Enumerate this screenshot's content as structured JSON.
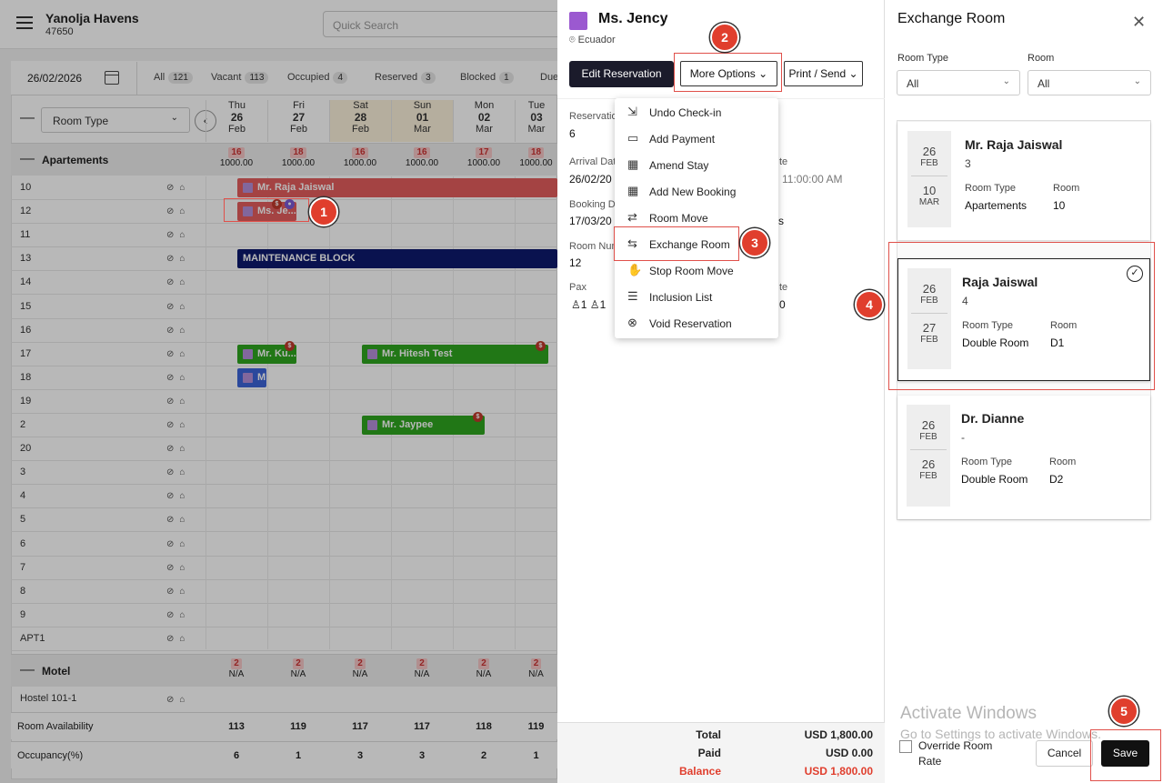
{
  "header": {
    "property_name": "Yanolja Havens",
    "property_id": "47650",
    "search_placeholder": "Quick Search"
  },
  "filters": {
    "date": "26/02/2026",
    "statuses": [
      {
        "label": "All",
        "count": "121"
      },
      {
        "label": "Vacant",
        "count": "113"
      },
      {
        "label": "Occupied",
        "count": "4"
      },
      {
        "label": "Reserved",
        "count": "3"
      },
      {
        "label": "Blocked",
        "count": "1"
      },
      {
        "label": "Due",
        "count": ""
      }
    ],
    "room_type_select": "Room Type"
  },
  "days": [
    {
      "dow": "Thu",
      "day": "26",
      "mon": "Feb",
      "count": "16",
      "rate": "1000.00",
      "avail": "113",
      "occ": "6",
      "motel_count": "2",
      "motel_rate": "N/A"
    },
    {
      "dow": "Fri",
      "day": "27",
      "mon": "Feb",
      "count": "18",
      "rate": "1000.00",
      "avail": "119",
      "occ": "1",
      "motel_count": "2",
      "motel_rate": "N/A"
    },
    {
      "dow": "Sat",
      "day": "28",
      "mon": "Feb",
      "count": "16",
      "rate": "1000.00",
      "avail": "117",
      "occ": "3",
      "motel_count": "2",
      "motel_rate": "N/A"
    },
    {
      "dow": "Sun",
      "day": "01",
      "mon": "Mar",
      "count": "16",
      "rate": "1000.00",
      "avail": "117",
      "occ": "3",
      "motel_count": "2",
      "motel_rate": "N/A"
    },
    {
      "dow": "Mon",
      "day": "02",
      "mon": "Mar",
      "count": "17",
      "rate": "1000.00",
      "avail": "118",
      "occ": "2",
      "motel_count": "2",
      "motel_rate": "N/A"
    },
    {
      "dow": "Tue",
      "day": "03",
      "mon": "Mar",
      "count": "18",
      "rate": "1000.00",
      "avail": "119",
      "occ": "1",
      "motel_count": "2",
      "motel_rate": "N/A"
    }
  ],
  "groups": {
    "apartments": "Apartements",
    "motel": "Motel"
  },
  "rooms": [
    "10",
    "12",
    "11",
    "13",
    "14",
    "15",
    "16",
    "17",
    "18",
    "19",
    "2",
    "20",
    "3",
    "4",
    "5",
    "6",
    "7",
    "8",
    "9",
    "APT1"
  ],
  "motel_rooms": [
    "Hostel 101-1"
  ],
  "bookings": {
    "raja": "Mr. Raja Jaiswal",
    "jency": "Ms. Je...",
    "maintenance": "MAINTENANCE BLOCK",
    "ku": "Mr. Ku...",
    "hitesh": "Mr. Hitesh Test",
    "m18": "M",
    "jaypee": "Mr. Jaypee"
  },
  "footer_rows": {
    "availability": "Room Availability",
    "occupancy": "Occupancy(%)"
  },
  "reservation": {
    "guest": "Ms. Jency",
    "country": "Ecuador",
    "edit_btn": "Edit Reservation",
    "more_btn": "More Options",
    "print_btn": "Print / Send",
    "fields": {
      "res_label": "Reservation",
      "res_val": "6",
      "arrival_label": "Arrival Dat",
      "arrival_val": "26/02/20",
      "depart_label_tail": "te",
      "depart_time": "11:00:00 AM",
      "booking_label": "Booking Da",
      "booking_val": "17/03/20",
      "booking_tail": "s",
      "roomnum_label": "Room Num",
      "roomnum_val": "12",
      "pax_label": "Pax",
      "pax_val1": "1",
      "pax_val2": "1",
      "pax_tail_label": "te",
      "pax_tail_val": "0"
    },
    "menu": [
      {
        "label": "Undo Check-in",
        "icon": "undo-checkin-icon",
        "glyph": "⇲"
      },
      {
        "label": "Add Payment",
        "icon": "card-icon",
        "glyph": "▭"
      },
      {
        "label": "Amend Stay",
        "icon": "calendar-edit-icon",
        "glyph": "▦"
      },
      {
        "label": "Add New Booking",
        "icon": "calendar-add-icon",
        "glyph": "▦"
      },
      {
        "label": "Room Move",
        "icon": "bed-move-icon",
        "glyph": "⇄"
      },
      {
        "label": "Exchange Room",
        "icon": "bed-exchange-icon",
        "glyph": "⇆"
      },
      {
        "label": "Stop Room Move",
        "icon": "hand-stop-icon",
        "glyph": "✋"
      },
      {
        "label": "Inclusion List",
        "icon": "inclusion-icon",
        "glyph": "☰"
      },
      {
        "label": "Void Reservation",
        "icon": "void-icon",
        "glyph": "⊗"
      }
    ],
    "totals": {
      "total_label": "Total",
      "total_val": "USD 1,800.00",
      "paid_label": "Paid",
      "paid_val": "USD 0.00",
      "balance_label": "Balance",
      "balance_val": "USD 1,800.00"
    }
  },
  "exchange": {
    "title": "Exchange Room",
    "room_type_label": "Room Type",
    "room_type_val": "All",
    "room_label": "Room",
    "room_val": "All",
    "cards": [
      {
        "from_day": "26",
        "from_mon": "FEB",
        "to_day": "10",
        "to_mon": "MAR",
        "name": "Mr. Raja Jaiswal",
        "sub": "3",
        "rt_label": "Room Type",
        "rt": "Apartements",
        "r_label": "Room",
        "r": "10"
      },
      {
        "from_day": "26",
        "from_mon": "FEB",
        "to_day": "27",
        "to_mon": "FEB",
        "name": "Raja Jaiswal",
        "sub": "4",
        "rt_label": "Room Type",
        "rt": "Double Room",
        "r_label": "Room",
        "r": "D1"
      },
      {
        "from_day": "26",
        "from_mon": "FEB",
        "to_day": "26",
        "to_mon": "FEB",
        "name": "Dr. Dianne",
        "sub": "-",
        "rt_label": "Room Type",
        "rt": "Double Room",
        "r_label": "Room",
        "r": "D2"
      }
    ],
    "override_label_1": "Override Room",
    "override_label_2": "Rate",
    "cancel": "Cancel",
    "save": "Save"
  },
  "watermark": {
    "line1": "Activate Windows",
    "line2": "Go to Settings to activate Windows."
  },
  "steps": [
    "1",
    "2",
    "3",
    "4",
    "5"
  ],
  "colors": {
    "booking_red": "#e35d5d",
    "booking_green": "#2ea51f",
    "maintenance": "#0d1a6e",
    "booking_blue": "#3c64d8",
    "step_red": "#e03e2d",
    "balance_red": "#e03e2d"
  }
}
